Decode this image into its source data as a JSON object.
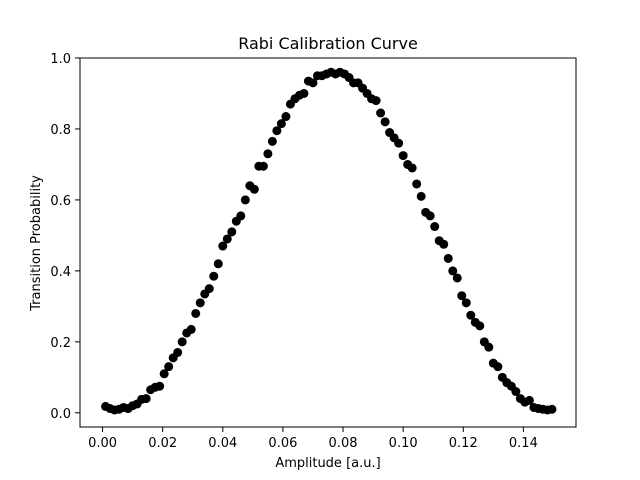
{
  "chart_data": {
    "type": "scatter",
    "title": "Rabi Calibration Curve",
    "xlabel": "Amplitude [a.u.]",
    "ylabel": "Transition Probability",
    "xlim": [
      -0.0075,
      0.1575
    ],
    "ylim": [
      -0.04,
      1.0
    ],
    "xticks": [
      0.0,
      0.02,
      0.04,
      0.06,
      0.08,
      0.1,
      0.12,
      0.14
    ],
    "xtick_labels": [
      "0.00",
      "0.02",
      "0.04",
      "0.06",
      "0.08",
      "0.10",
      "0.12",
      "0.14"
    ],
    "yticks": [
      0.0,
      0.2,
      0.4,
      0.6,
      0.8,
      1.0
    ],
    "ytick_labels": [
      "0.0",
      "0.2",
      "0.4",
      "0.6",
      "0.8",
      "1.0"
    ],
    "grid": false,
    "marker_color": "#000000",
    "series": [
      {
        "points": [
          [
            0.001,
            0.018
          ],
          [
            0.0025,
            0.012
          ],
          [
            0.004,
            0.008
          ],
          [
            0.0055,
            0.01
          ],
          [
            0.007,
            0.015
          ],
          [
            0.0085,
            0.012
          ],
          [
            0.01,
            0.02
          ],
          [
            0.0115,
            0.025
          ],
          [
            0.013,
            0.038
          ],
          [
            0.0145,
            0.04
          ],
          [
            0.016,
            0.065
          ],
          [
            0.0175,
            0.072
          ],
          [
            0.019,
            0.075
          ],
          [
            0.0205,
            0.11
          ],
          [
            0.022,
            0.13
          ],
          [
            0.0235,
            0.155
          ],
          [
            0.025,
            0.17
          ],
          [
            0.0265,
            0.2
          ],
          [
            0.028,
            0.225
          ],
          [
            0.0295,
            0.235
          ],
          [
            0.031,
            0.28
          ],
          [
            0.0325,
            0.31
          ],
          [
            0.034,
            0.335
          ],
          [
            0.0355,
            0.35
          ],
          [
            0.037,
            0.385
          ],
          [
            0.0385,
            0.42
          ],
          [
            0.04,
            0.47
          ],
          [
            0.0415,
            0.49
          ],
          [
            0.043,
            0.51
          ],
          [
            0.0445,
            0.54
          ],
          [
            0.046,
            0.555
          ],
          [
            0.0475,
            0.6
          ],
          [
            0.049,
            0.64
          ],
          [
            0.0505,
            0.63
          ],
          [
            0.052,
            0.695
          ],
          [
            0.0535,
            0.695
          ],
          [
            0.055,
            0.73
          ],
          [
            0.0565,
            0.765
          ],
          [
            0.058,
            0.795
          ],
          [
            0.0595,
            0.815
          ],
          [
            0.061,
            0.835
          ],
          [
            0.0625,
            0.87
          ],
          [
            0.064,
            0.885
          ],
          [
            0.0655,
            0.895
          ],
          [
            0.067,
            0.9
          ],
          [
            0.0685,
            0.935
          ],
          [
            0.07,
            0.93
          ],
          [
            0.0715,
            0.95
          ],
          [
            0.073,
            0.95
          ],
          [
            0.0745,
            0.955
          ],
          [
            0.076,
            0.96
          ],
          [
            0.0775,
            0.955
          ],
          [
            0.079,
            0.96
          ],
          [
            0.0805,
            0.955
          ],
          [
            0.082,
            0.945
          ],
          [
            0.0835,
            0.93
          ],
          [
            0.085,
            0.93
          ],
          [
            0.0865,
            0.915
          ],
          [
            0.088,
            0.9
          ],
          [
            0.0895,
            0.885
          ],
          [
            0.091,
            0.88
          ],
          [
            0.0925,
            0.845
          ],
          [
            0.094,
            0.82
          ],
          [
            0.0955,
            0.79
          ],
          [
            0.097,
            0.775
          ],
          [
            0.0985,
            0.76
          ],
          [
            0.1,
            0.725
          ],
          [
            0.1015,
            0.7
          ],
          [
            0.103,
            0.69
          ],
          [
            0.1045,
            0.645
          ],
          [
            0.106,
            0.61
          ],
          [
            0.1075,
            0.565
          ],
          [
            0.109,
            0.555
          ],
          [
            0.1105,
            0.525
          ],
          [
            0.112,
            0.485
          ],
          [
            0.1135,
            0.475
          ],
          [
            0.115,
            0.435
          ],
          [
            0.1165,
            0.4
          ],
          [
            0.118,
            0.38
          ],
          [
            0.1195,
            0.33
          ],
          [
            0.121,
            0.31
          ],
          [
            0.1225,
            0.275
          ],
          [
            0.124,
            0.255
          ],
          [
            0.1255,
            0.245
          ],
          [
            0.127,
            0.2
          ],
          [
            0.1285,
            0.185
          ],
          [
            0.13,
            0.14
          ],
          [
            0.1315,
            0.13
          ],
          [
            0.133,
            0.1
          ],
          [
            0.1345,
            0.085
          ],
          [
            0.136,
            0.075
          ],
          [
            0.1375,
            0.06
          ],
          [
            0.139,
            0.04
          ],
          [
            0.1405,
            0.03
          ],
          [
            0.142,
            0.035
          ],
          [
            0.1435,
            0.015
          ],
          [
            0.145,
            0.012
          ],
          [
            0.1465,
            0.01
          ],
          [
            0.148,
            0.008
          ],
          [
            0.1495,
            0.01
          ]
        ]
      }
    ]
  }
}
